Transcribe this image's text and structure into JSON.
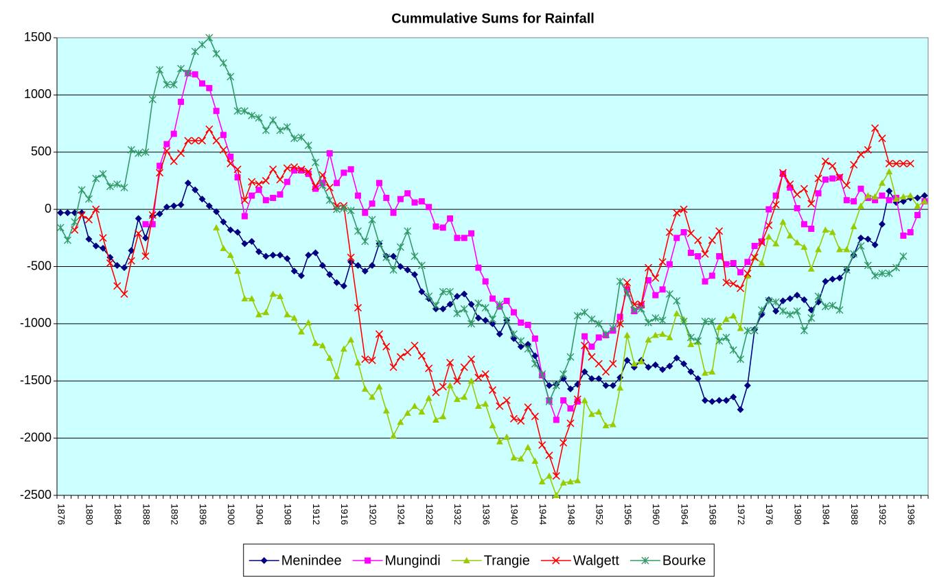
{
  "chart_data": {
    "type": "line",
    "title": "Cummulative Sums for Rainfall",
    "categories": [
      1876,
      null,
      null,
      null,
      1880,
      null,
      null,
      null,
      1884,
      null,
      null,
      null,
      1888,
      null,
      null,
      null,
      1892,
      null,
      null,
      null,
      1896,
      null,
      null,
      null,
      1900,
      null,
      null,
      null,
      1904,
      null,
      null,
      null,
      1908,
      null,
      null,
      null,
      1912,
      null,
      null,
      null,
      1916,
      null,
      null,
      null,
      1920,
      null,
      null,
      null,
      1924,
      null,
      null,
      null,
      1928,
      null,
      null,
      null,
      1932,
      null,
      null,
      null,
      1936,
      null,
      null,
      null,
      1940,
      null,
      null,
      null,
      1944,
      null,
      null,
      null,
      1948,
      null,
      null,
      null,
      1952,
      null,
      null,
      null,
      1956,
      null,
      null,
      null,
      1960,
      null,
      null,
      null,
      1964,
      null,
      null,
      null,
      1968,
      null,
      null,
      null,
      1972,
      null,
      null,
      null,
      1976,
      null,
      null,
      null,
      1980,
      null,
      null,
      null,
      1984,
      null,
      null,
      null,
      1988,
      null,
      null,
      null,
      1992,
      null,
      null,
      null,
      1996,
      null,
      null
    ],
    "ylim": [
      -2500,
      1500
    ],
    "yticks": [
      -2500,
      -2000,
      -1500,
      -1000,
      -500,
      0,
      500,
      1000,
      1500
    ],
    "grid": true,
    "legend": "bottom",
    "background": "#ccffff",
    "series": [
      {
        "name": "Menindee",
        "color": "#000080",
        "marker": "diamond",
        "values": [
          -30,
          -30,
          -30,
          -30,
          -260,
          -320,
          -340,
          -420,
          -490,
          -510,
          -360,
          -80,
          -250,
          -60,
          -40,
          20,
          30,
          40,
          230,
          170,
          90,
          30,
          -20,
          -110,
          -180,
          -200,
          -300,
          -280,
          -370,
          -410,
          -400,
          -400,
          -430,
          -540,
          -580,
          -400,
          -380,
          -490,
          -570,
          -640,
          -670,
          -460,
          -490,
          -540,
          -490,
          -300,
          -410,
          -410,
          -500,
          -530,
          -570,
          -720,
          -780,
          -870,
          -870,
          -830,
          -760,
          -740,
          -830,
          -950,
          -970,
          -1000,
          -1090,
          -970,
          -1130,
          -1200,
          -1180,
          -1280,
          -1450,
          -1540,
          -1530,
          -1480,
          -1570,
          -1530,
          -1420,
          -1480,
          -1480,
          -1540,
          -1540,
          -1470,
          -1320,
          -1380,
          -1320,
          -1380,
          -1360,
          -1400,
          -1370,
          -1300,
          -1350,
          -1420,
          -1480,
          -1670,
          -1680,
          -1670,
          -1670,
          -1640,
          -1750,
          -1540,
          -1050,
          -920,
          -790,
          -890,
          -800,
          -780,
          -750,
          -790,
          -880,
          -810,
          -630,
          -610,
          -600,
          -530,
          -400,
          -250,
          -260,
          -310,
          -130,
          160,
          60,
          70,
          100,
          100,
          120
        ]
      },
      {
        "name": "Mungindi",
        "color": "#ff00ff",
        "marker": "square",
        "values": [
          null,
          null,
          null,
          null,
          null,
          null,
          null,
          null,
          null,
          null,
          null,
          null,
          -130,
          -130,
          380,
          570,
          660,
          940,
          1190,
          1180,
          1100,
          1060,
          860,
          650,
          460,
          280,
          -60,
          120,
          170,
          80,
          100,
          130,
          240,
          340,
          340,
          310,
          180,
          230,
          490,
          230,
          320,
          350,
          120,
          -30,
          50,
          230,
          100,
          -30,
          90,
          140,
          60,
          70,
          20,
          -150,
          -160,
          -80,
          -250,
          -250,
          -210,
          -510,
          -630,
          -780,
          -850,
          -800,
          -900,
          -990,
          -1010,
          -1130,
          -1450,
          -1670,
          -1840,
          -1670,
          -1740,
          -1680,
          -1110,
          -1200,
          -1120,
          -1100,
          -1060,
          -940,
          -700,
          -890,
          -840,
          -620,
          -750,
          -700,
          -480,
          -250,
          -200,
          -380,
          -410,
          -630,
          -580,
          -410,
          -480,
          -470,
          -550,
          -460,
          -320,
          -280,
          0,
          120,
          310,
          190,
          10,
          -130,
          -170,
          140,
          260,
          270,
          280,
          80,
          70,
          180,
          100,
          80,
          120,
          80,
          100,
          -230,
          -200,
          -50,
          70
        ]
      },
      {
        "name": "Trangie",
        "color": "#99cc00",
        "marker": "triangle",
        "values": [
          null,
          null,
          null,
          null,
          null,
          null,
          null,
          null,
          null,
          null,
          null,
          null,
          null,
          null,
          null,
          null,
          null,
          null,
          null,
          null,
          null,
          null,
          -160,
          -340,
          -400,
          -540,
          -780,
          -780,
          -920,
          -900,
          -740,
          -760,
          -920,
          -950,
          -1070,
          -990,
          -1170,
          -1190,
          -1300,
          -1460,
          -1220,
          -1140,
          -1340,
          -1570,
          -1640,
          -1550,
          -1760,
          -1980,
          -1860,
          -1780,
          -1720,
          -1770,
          -1650,
          -1840,
          -1810,
          -1540,
          -1660,
          -1640,
          -1500,
          -1720,
          -1700,
          -1890,
          -2030,
          -1990,
          -2170,
          -2180,
          -2080,
          -2200,
          -2380,
          -2330,
          -2500,
          -2390,
          -2380,
          -2370,
          -1670,
          -1790,
          -1770,
          -1890,
          -1880,
          -1560,
          -1100,
          -1350,
          -1330,
          -1140,
          -1100,
          -1090,
          -1120,
          -910,
          -960,
          -1180,
          -1160,
          -1430,
          -1420,
          -1030,
          -960,
          -930,
          -1040,
          -580,
          -420,
          -470,
          -240,
          -300,
          -110,
          -230,
          -290,
          -330,
          -520,
          -350,
          -180,
          -200,
          -350,
          -350,
          -150,
          30,
          120,
          110,
          230,
          330,
          90,
          110,
          120,
          30,
          70
        ]
      },
      {
        "name": "Walgett",
        "color": "#ff0000",
        "marker": "x",
        "values": [
          null,
          null,
          -180,
          -50,
          -90,
          0,
          -250,
          -470,
          -670,
          -740,
          -450,
          -210,
          -410,
          -50,
          320,
          510,
          420,
          490,
          600,
          600,
          600,
          700,
          600,
          520,
          400,
          350,
          80,
          240,
          220,
          250,
          350,
          260,
          360,
          370,
          350,
          330,
          200,
          300,
          190,
          30,
          30,
          -420,
          -860,
          -1310,
          -1320,
          -1090,
          -1200,
          -1380,
          -1290,
          -1250,
          -1190,
          -1280,
          -1390,
          -1600,
          -1550,
          -1340,
          -1500,
          -1380,
          -1310,
          -1470,
          -1440,
          -1580,
          -1720,
          -1670,
          -1830,
          -1850,
          -1730,
          -1810,
          -2060,
          -2150,
          -2330,
          -2040,
          -1870,
          -1660,
          -1190,
          -1290,
          -1350,
          -1420,
          -1350,
          -1000,
          -640,
          -830,
          -830,
          -510,
          -600,
          -460,
          -200,
          -30,
          0,
          -210,
          -270,
          -390,
          -270,
          -190,
          -640,
          -650,
          -690,
          -560,
          -420,
          -290,
          -140,
          40,
          320,
          220,
          130,
          180,
          50,
          270,
          420,
          380,
          280,
          210,
          390,
          480,
          520,
          710,
          620,
          400,
          400,
          400,
          400,
          null,
          null
        ]
      },
      {
        "name": "Bourke",
        "color": "#339966",
        "marker": "asterisk",
        "values": [
          -160,
          -270,
          -110,
          170,
          90,
          270,
          310,
          200,
          220,
          190,
          520,
          490,
          500,
          960,
          1220,
          1090,
          1090,
          1230,
          1190,
          1380,
          1440,
          1500,
          1360,
          1280,
          1160,
          860,
          860,
          820,
          800,
          690,
          780,
          690,
          720,
          620,
          630,
          560,
          410,
          210,
          80,
          0,
          10,
          -10,
          -190,
          -280,
          -90,
          -300,
          -420,
          -530,
          -330,
          -190,
          -410,
          -490,
          -760,
          -840,
          -720,
          -720,
          -910,
          -870,
          -1000,
          -820,
          -860,
          -960,
          -830,
          -970,
          -1090,
          -1150,
          -1220,
          -1350,
          -1440,
          -1680,
          -1540,
          -1440,
          -1290,
          -930,
          -900,
          -960,
          -1000,
          -1090,
          -1040,
          -630,
          -730,
          -880,
          -870,
          -990,
          -950,
          -970,
          -740,
          -800,
          -980,
          -1120,
          -1150,
          -980,
          -980,
          -1150,
          -1120,
          -1230,
          -1310,
          -1060,
          -1060,
          -880,
          -800,
          -810,
          -890,
          -920,
          -890,
          -1060,
          -950,
          -760,
          -850,
          -840,
          -880,
          -530,
          -390,
          -320,
          -490,
          -580,
          -560,
          -560,
          -510,
          -410,
          null,
          null,
          null
        ]
      }
    ]
  }
}
